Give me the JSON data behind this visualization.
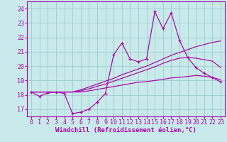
{
  "xlabel": "Windchill (Refroidissement éolien,°C)",
  "bg_color": "#c8eaea",
  "grid_color": "#a0cccc",
  "line_color": "#aa00aa",
  "x_values": [
    0,
    1,
    2,
    3,
    4,
    5,
    6,
    7,
    8,
    9,
    10,
    11,
    12,
    13,
    14,
    15,
    16,
    17,
    18,
    19,
    20,
    21,
    22,
    23
  ],
  "y_scatter": [
    18.2,
    17.9,
    18.15,
    18.2,
    18.1,
    16.7,
    16.8,
    17.0,
    17.5,
    18.1,
    20.8,
    21.6,
    20.5,
    20.3,
    20.5,
    23.8,
    22.6,
    23.7,
    21.8,
    20.6,
    19.9,
    19.5,
    19.2,
    18.9
  ],
  "y_line1": [
    18.2,
    18.2,
    18.2,
    18.2,
    18.2,
    18.2,
    18.35,
    18.55,
    18.75,
    18.95,
    19.15,
    19.4,
    19.6,
    19.8,
    20.0,
    20.25,
    20.5,
    20.75,
    20.95,
    21.15,
    21.35,
    21.5,
    21.65,
    21.75
  ],
  "y_line2": [
    18.2,
    18.2,
    18.2,
    18.2,
    18.2,
    18.2,
    18.28,
    18.42,
    18.6,
    18.75,
    18.95,
    19.15,
    19.35,
    19.55,
    19.75,
    19.95,
    20.2,
    20.4,
    20.55,
    20.6,
    20.55,
    20.45,
    20.35,
    19.9
  ],
  "y_line3": [
    18.2,
    18.2,
    18.2,
    18.2,
    18.2,
    18.2,
    18.2,
    18.28,
    18.38,
    18.48,
    18.58,
    18.68,
    18.78,
    18.88,
    18.92,
    19.0,
    19.08,
    19.18,
    19.22,
    19.28,
    19.35,
    19.3,
    19.22,
    19.05
  ],
  "ylim": [
    16.5,
    24.5
  ],
  "yticks": [
    17,
    18,
    19,
    20,
    21,
    22,
    23,
    24
  ],
  "xticks": [
    0,
    1,
    2,
    3,
    4,
    5,
    6,
    7,
    8,
    9,
    10,
    11,
    12,
    13,
    14,
    15,
    16,
    17,
    18,
    19,
    20,
    21,
    22,
    23
  ],
  "xlabel_fontsize": 6.5,
  "tick_fontsize": 6.0
}
